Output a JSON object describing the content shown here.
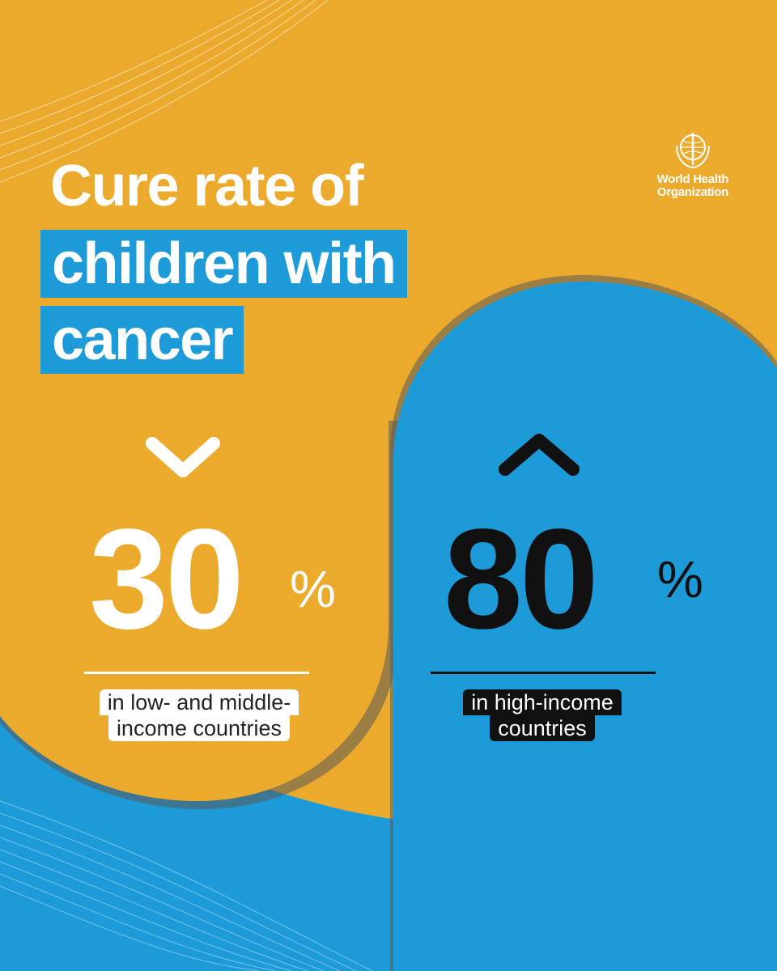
{
  "title": {
    "line1": "Cure rate of",
    "line2": "children with",
    "line3": "cancer"
  },
  "logo": {
    "line1": "World Health",
    "line2": "Organization"
  },
  "low_income": {
    "value": "30",
    "unit": "%",
    "caption_line1": "in low- and middle-",
    "caption_line2": "income countries",
    "direction": "down"
  },
  "high_income": {
    "value": "80",
    "unit": "%",
    "caption_line1": "in high-income",
    "caption_line2": "countries",
    "direction": "up"
  },
  "colors": {
    "orange": "#ecaa2c",
    "blue": "#1d9ad8",
    "white": "#ffffff",
    "black": "#111111"
  }
}
